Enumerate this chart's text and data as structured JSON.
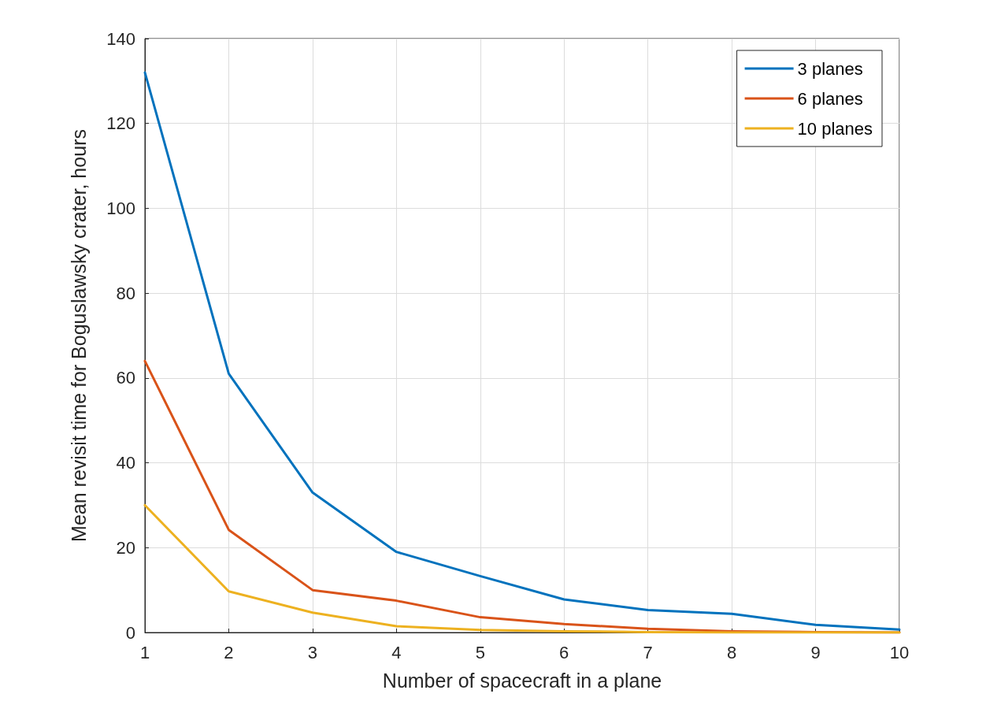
{
  "chart_data": {
    "type": "line",
    "xlabel": "Number of spacecraft in a plane",
    "ylabel": "Mean revisit time for Boguslawsky crater, hours",
    "x": [
      1,
      2,
      3,
      4,
      5,
      6,
      7,
      8,
      9,
      10
    ],
    "series": [
      {
        "name": "3 planes",
        "color": "#0072bd",
        "values": [
          132,
          61,
          33,
          19,
          13.3,
          7.8,
          5.3,
          4.4,
          1.8,
          0.7
        ]
      },
      {
        "name": "6 planes",
        "color": "#d95319",
        "values": [
          64,
          24.2,
          10,
          7.5,
          3.6,
          2,
          0.9,
          0.3,
          0.1,
          0
        ]
      },
      {
        "name": "10 planes",
        "color": "#edb120",
        "values": [
          30,
          9.7,
          4.7,
          1.5,
          0.6,
          0.3,
          0.1,
          0,
          0,
          0
        ]
      }
    ],
    "xlim": [
      1,
      10
    ],
    "xticks": [
      1,
      2,
      3,
      4,
      5,
      6,
      7,
      8,
      9,
      10
    ],
    "ylim": [
      0,
      140
    ],
    "yticks": [
      0,
      20,
      40,
      60,
      80,
      100,
      120,
      140
    ],
    "grid": true,
    "legend": "top right",
    "marker": "none",
    "line_style": "solid"
  }
}
